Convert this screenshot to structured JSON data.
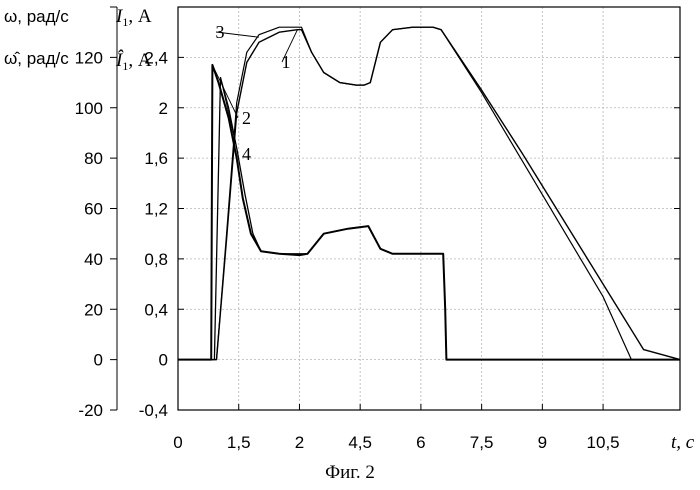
{
  "chart_data": {
    "type": "line",
    "caption": "Фиг. 2",
    "xlabel": "t, с",
    "x_ticks": [
      0,
      1.5,
      3,
      4.5,
      6,
      7.5,
      9,
      10.5
    ],
    "x_tick_labels": [
      "0",
      "1,5",
      "2",
      "4,5",
      "6",
      "7,5",
      "9",
      "10,5"
    ],
    "xlim": [
      0,
      12.4
    ],
    "ylim": [
      -20,
      140
    ],
    "y_ticks_omega": [
      -20,
      0,
      20,
      40,
      60,
      80,
      100,
      120
    ],
    "y_ticks_current": [
      -0.4,
      0,
      0.4,
      0.8,
      1.2,
      1.6,
      2,
      2.4
    ],
    "y_tick_labels_omega": [
      "-20",
      "0",
      "20",
      "40",
      "60",
      "80",
      "100",
      "120"
    ],
    "y_tick_labels_current": [
      "-0,4",
      "0",
      "0,4",
      "0,8",
      "1,2",
      "1,6",
      "2",
      "2,4"
    ],
    "ylabel_omega": "ω, рад/с",
    "ylabel_omega_hat": "ω̂, рад/с",
    "ylabel_current": "I",
    "ylabel_current_hat": "Î",
    "ylabel_current_sub": "1",
    "ylabel_current_unit": ", А",
    "grid": true,
    "series": [
      {
        "name": "1",
        "x": [
          0,
          0.95,
          1.2,
          1.45,
          1.7,
          2.0,
          2.5,
          2.95,
          3.05,
          3.3,
          3.6,
          4.0,
          4.4,
          4.6,
          4.75,
          5.0,
          5.3,
          5.8,
          6.3,
          6.5,
          7.5,
          8.5,
          9.5,
          10.5,
          11.5,
          12.4
        ],
        "y": [
          0,
          0,
          48,
          98,
          118,
          126,
          130,
          131,
          131,
          122,
          114,
          110,
          109,
          109,
          110,
          126,
          131,
          132,
          132,
          131,
          107,
          82,
          56,
          30,
          4,
          0
        ]
      },
      {
        "name": "2",
        "x": [
          0,
          0.82,
          0.85,
          1.0,
          1.25,
          1.45,
          1.6,
          1.8,
          2.05,
          2.5,
          3.0,
          3.2,
          3.6,
          4.2,
          4.7,
          5.0,
          5.3,
          6.0,
          6.55,
          6.6,
          6.63,
          12.4
        ],
        "y": [
          0,
          0,
          117,
          110,
          96,
          80,
          64,
          50,
          43,
          42,
          41.5,
          42,
          50,
          52,
          53,
          44,
          42,
          42,
          42,
          20,
          0,
          0
        ]
      },
      {
        "name": "3",
        "x": [
          0,
          0.95,
          1.2,
          1.45,
          1.7,
          2.0,
          2.5,
          3.0,
          3.05,
          3.3,
          3.6,
          4.0,
          4.4,
          4.6,
          4.75,
          5.0,
          5.3,
          5.8,
          6.3,
          6.5,
          7.5,
          8.5,
          9.5,
          10.5,
          11.2,
          12.4
        ],
        "y": [
          0,
          0,
          50,
          102,
          122,
          129,
          132,
          132,
          132,
          122,
          114,
          110,
          109,
          109,
          110,
          126,
          131,
          132,
          132,
          131,
          106,
          79,
          52,
          25,
          0,
          0
        ]
      },
      {
        "name": "4",
        "x": [
          0,
          0.9,
          1.05,
          1.25,
          1.45,
          1.65,
          1.85,
          2.05,
          2.5,
          3.0,
          3.2,
          3.6,
          4.2,
          4.7,
          5.0,
          5.3,
          6.0,
          6.55,
          6.6,
          6.63,
          12.4
        ],
        "y": [
          0,
          0,
          112,
          100,
          84,
          66,
          50,
          43,
          42,
          42,
          42,
          50,
          52,
          53,
          44,
          42,
          42,
          42,
          20,
          0,
          0
        ]
      }
    ]
  }
}
